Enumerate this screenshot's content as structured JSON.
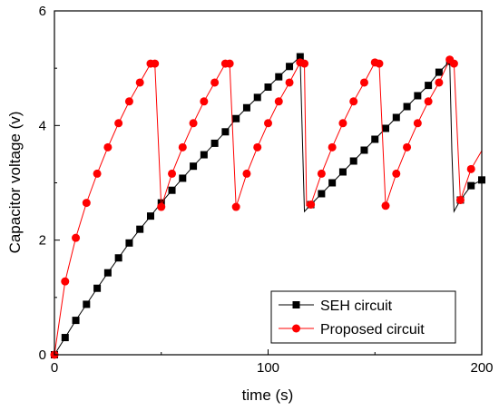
{
  "chart_data": {
    "type": "line",
    "title": "",
    "xlabel": "time (s)",
    "ylabel": "Capacitor voltage (v)",
    "xlim": [
      0,
      200
    ],
    "ylim": [
      0,
      6
    ],
    "xticks": [
      0,
      100,
      200
    ],
    "yticks": [
      0,
      2,
      4,
      6
    ],
    "xtick_labels": [
      "0",
      "100",
      "200"
    ],
    "ytick_labels": [
      "0",
      "2",
      "4",
      "6"
    ],
    "grid": false,
    "legend_position": "bottom-right",
    "series": [
      {
        "name": "SEH circuit",
        "color": "#000000",
        "marker": "square",
        "points": [
          [
            0,
            0.0
          ],
          [
            5,
            0.3
          ],
          [
            10,
            0.6
          ],
          [
            15,
            0.88
          ],
          [
            20,
            1.16
          ],
          [
            25,
            1.43
          ],
          [
            30,
            1.69
          ],
          [
            35,
            1.95
          ],
          [
            40,
            2.19
          ],
          [
            45,
            2.42
          ],
          [
            50,
            2.65
          ],
          [
            55,
            2.87
          ],
          [
            60,
            3.08
          ],
          [
            65,
            3.29
          ],
          [
            70,
            3.49
          ],
          [
            75,
            3.69
          ],
          [
            80,
            3.89
          ],
          [
            85,
            4.12
          ],
          [
            90,
            4.31
          ],
          [
            95,
            4.49
          ],
          [
            100,
            4.67
          ],
          [
            105,
            4.85
          ],
          [
            110,
            5.03
          ],
          [
            115,
            5.2
          ],
          [
            117,
            2.5
          ],
          [
            120,
            2.62
          ],
          [
            125,
            2.81
          ],
          [
            130,
            3.0
          ],
          [
            135,
            3.19
          ],
          [
            140,
            3.38
          ],
          [
            145,
            3.57
          ],
          [
            150,
            3.76
          ],
          [
            155,
            3.95
          ],
          [
            160,
            4.14
          ],
          [
            165,
            4.33
          ],
          [
            170,
            4.52
          ],
          [
            175,
            4.7
          ],
          [
            180,
            4.93
          ],
          [
            185,
            5.12
          ],
          [
            186,
            3.55
          ],
          [
            187,
            2.5
          ],
          [
            190,
            2.7
          ],
          [
            195,
            2.95
          ],
          [
            200,
            3.05
          ]
        ]
      },
      {
        "name": "Proposed circuit",
        "color": "#ff0000",
        "marker": "circle",
        "points": [
          [
            0,
            0.0
          ],
          [
            5,
            1.28
          ],
          [
            10,
            2.04
          ],
          [
            15,
            2.65
          ],
          [
            20,
            3.16
          ],
          [
            25,
            3.62
          ],
          [
            30,
            4.04
          ],
          [
            35,
            4.42
          ],
          [
            40,
            4.75
          ],
          [
            45,
            5.08
          ],
          [
            47,
            5.08
          ],
          [
            50,
            2.58
          ],
          [
            55,
            3.16
          ],
          [
            60,
            3.62
          ],
          [
            65,
            4.04
          ],
          [
            70,
            4.42
          ],
          [
            75,
            4.75
          ],
          [
            80,
            5.08
          ],
          [
            82,
            5.08
          ],
          [
            85,
            2.58
          ],
          [
            90,
            3.16
          ],
          [
            95,
            3.62
          ],
          [
            100,
            4.04
          ],
          [
            105,
            4.42
          ],
          [
            110,
            4.75
          ],
          [
            115,
            5.1
          ],
          [
            117,
            5.08
          ],
          [
            118,
            2.6
          ],
          [
            120,
            2.62
          ],
          [
            125,
            3.16
          ],
          [
            130,
            3.62
          ],
          [
            135,
            4.04
          ],
          [
            140,
            4.42
          ],
          [
            145,
            4.75
          ],
          [
            150,
            5.1
          ],
          [
            152,
            5.08
          ],
          [
            155,
            2.6
          ],
          [
            160,
            3.16
          ],
          [
            165,
            3.62
          ],
          [
            170,
            4.04
          ],
          [
            175,
            4.42
          ],
          [
            180,
            4.75
          ],
          [
            185,
            5.15
          ],
          [
            187,
            5.08
          ],
          [
            190,
            2.7
          ],
          [
            195,
            3.24
          ],
          [
            200,
            3.56
          ]
        ],
        "marker_x": [
          0,
          5,
          10,
          15,
          20,
          25,
          30,
          35,
          40,
          45,
          50,
          55,
          60,
          65,
          70,
          75,
          80,
          85,
          90,
          95,
          100,
          105,
          110,
          115,
          120,
          125,
          130,
          135,
          140,
          145,
          150,
          155,
          160,
          165,
          170,
          175,
          180,
          185,
          190,
          195
        ]
      }
    ]
  }
}
